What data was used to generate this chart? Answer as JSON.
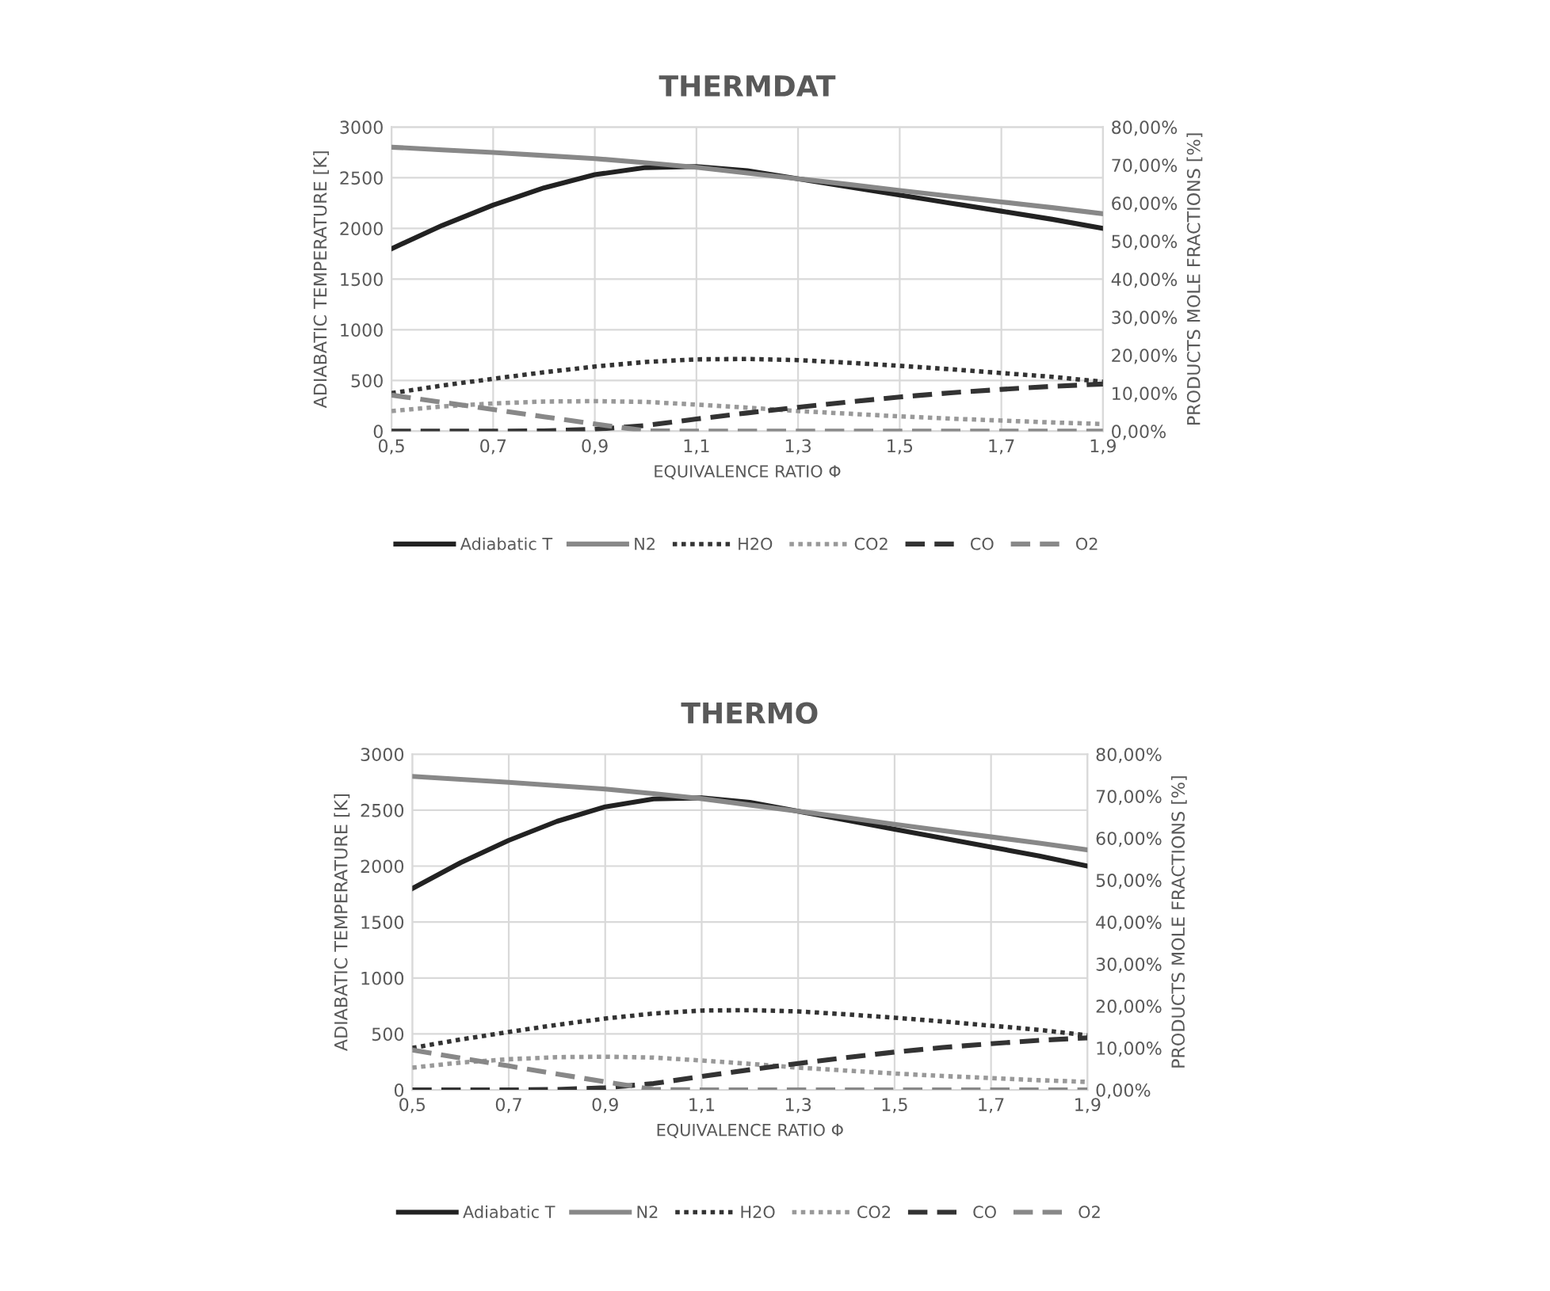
{
  "chart_data": [
    {
      "type": "line",
      "title": "THERMDAT",
      "xlabel": "EQUIVALENCE RATIO Φ",
      "ylabel": "ADIABATIC TEMPERATURE [K]",
      "y2label": "PRODUCTS MOLE FRACTIONS [%]",
      "x": [
        0.5,
        0.6,
        0.7,
        0.8,
        0.9,
        1.0,
        1.1,
        1.2,
        1.3,
        1.4,
        1.5,
        1.6,
        1.7,
        1.8,
        1.9
      ],
      "xlim": [
        0.5,
        1.9
      ],
      "xticks": [
        {
          "value": 0.5,
          "label": "0,5"
        },
        {
          "value": 0.7,
          "label": "0,7"
        },
        {
          "value": 0.9,
          "label": "0,9"
        },
        {
          "value": 1.1,
          "label": "1,1"
        },
        {
          "value": 1.3,
          "label": "1,3"
        },
        {
          "value": 1.5,
          "label": "1,5"
        },
        {
          "value": 1.7,
          "label": "1,7"
        },
        {
          "value": 1.9,
          "label": "1,9"
        }
      ],
      "ylim": [
        0,
        3000
      ],
      "yticks": [
        0,
        500,
        1000,
        1500,
        2000,
        2500,
        3000
      ],
      "y2lim": [
        0,
        80
      ],
      "y2ticks": [
        {
          "value": 0,
          "label": "0,00%"
        },
        {
          "value": 10,
          "label": "10,00%"
        },
        {
          "value": 20,
          "label": "20,00%"
        },
        {
          "value": 30,
          "label": "30,00%"
        },
        {
          "value": 40,
          "label": "40,00%"
        },
        {
          "value": 50,
          "label": "50,00%"
        },
        {
          "value": 60,
          "label": "60,00%"
        },
        {
          "value": 70,
          "label": "70,00%"
        },
        {
          "value": 80,
          "label": "80,00%"
        }
      ],
      "grid": true,
      "legend": "bottom",
      "series": [
        {
          "name": "Adiabatic T",
          "color": "#222222",
          "line_style": "solid",
          "values": [
            1800,
            2030,
            2230,
            2400,
            2530,
            2600,
            2610,
            2570,
            2490,
            2410,
            2330,
            2250,
            2170,
            2090,
            2000
          ]
        },
        {
          "name": "N2",
          "color": "#888888",
          "line_style": "solid",
          "axis": "y2",
          "values": [
            74.7,
            74.0,
            73.3,
            72.5,
            71.7,
            70.6,
            69.4,
            67.9,
            66.4,
            64.9,
            63.3,
            61.8,
            60.3,
            58.8,
            57.2
          ]
        },
        {
          "name": "H2O",
          "color": "#333333",
          "line_style": "dotted",
          "axis": "y2",
          "values": [
            10.0,
            12.0,
            13.8,
            15.5,
            17.0,
            18.2,
            18.9,
            19.0,
            18.7,
            18.0,
            17.2,
            16.3,
            15.3,
            14.3,
            13.0
          ]
        },
        {
          "name": "CO2",
          "color": "#999999",
          "line_style": "dotted",
          "axis": "y2",
          "values": [
            5.3,
            6.5,
            7.3,
            7.8,
            7.9,
            7.7,
            7.0,
            6.2,
            5.3,
            4.6,
            3.9,
            3.3,
            2.8,
            2.3,
            1.9
          ]
        },
        {
          "name": "CO",
          "color": "#333333",
          "line_style": "dashed",
          "axis": "y2",
          "values": [
            0,
            0,
            0,
            0.1,
            0.5,
            1.5,
            3.2,
            4.8,
            6.3,
            7.7,
            9.0,
            10.1,
            11.0,
            11.8,
            12.4
          ]
        },
        {
          "name": "O2",
          "color": "#888888",
          "line_style": "dashed",
          "axis": "y2",
          "values": [
            9.5,
            7.6,
            5.7,
            3.8,
            1.9,
            0.1,
            0,
            0,
            0,
            0,
            0,
            0,
            0,
            0,
            0
          ]
        }
      ]
    },
    {
      "type": "line",
      "title": "THERMO",
      "xlabel": "EQUIVALENCE RATIO Φ",
      "ylabel": "ADIABATIC TEMPERATURE [K]",
      "y2label": "PRODUCTS MOLE FRACTIONS [%]",
      "x": [
        0.5,
        0.6,
        0.7,
        0.8,
        0.9,
        1.0,
        1.1,
        1.2,
        1.3,
        1.4,
        1.5,
        1.6,
        1.7,
        1.8,
        1.9
      ],
      "xlim": [
        0.5,
        1.9
      ],
      "xticks": [
        {
          "value": 0.5,
          "label": "0,5"
        },
        {
          "value": 0.7,
          "label": "0,7"
        },
        {
          "value": 0.9,
          "label": "0,9"
        },
        {
          "value": 1.1,
          "label": "1,1"
        },
        {
          "value": 1.3,
          "label": "1,3"
        },
        {
          "value": 1.5,
          "label": "1,5"
        },
        {
          "value": 1.7,
          "label": "1,7"
        },
        {
          "value": 1.9,
          "label": "1,9"
        }
      ],
      "ylim": [
        0,
        3000
      ],
      "yticks": [
        0,
        500,
        1000,
        1500,
        2000,
        2500,
        3000
      ],
      "y2lim": [
        0,
        80
      ],
      "y2ticks": [
        {
          "value": 0,
          "label": "0,00%"
        },
        {
          "value": 10,
          "label": "10,00%"
        },
        {
          "value": 20,
          "label": "20,00%"
        },
        {
          "value": 30,
          "label": "30,00%"
        },
        {
          "value": 40,
          "label": "40,00%"
        },
        {
          "value": 50,
          "label": "50,00%"
        },
        {
          "value": 60,
          "label": "60,00%"
        },
        {
          "value": 70,
          "label": "70,00%"
        },
        {
          "value": 80,
          "label": "80,00%"
        }
      ],
      "grid": true,
      "legend": "bottom",
      "series": [
        {
          "name": "Adiabatic T",
          "color": "#222222",
          "line_style": "solid",
          "values": [
            1800,
            2030,
            2230,
            2400,
            2530,
            2600,
            2610,
            2570,
            2490,
            2410,
            2330,
            2250,
            2170,
            2090,
            2000
          ]
        },
        {
          "name": "N2",
          "color": "#888888",
          "line_style": "solid",
          "axis": "y2",
          "values": [
            74.7,
            74.0,
            73.3,
            72.5,
            71.7,
            70.6,
            69.4,
            67.9,
            66.4,
            64.9,
            63.3,
            61.8,
            60.3,
            58.8,
            57.2
          ]
        },
        {
          "name": "H2O",
          "color": "#333333",
          "line_style": "dotted",
          "axis": "y2",
          "values": [
            10.0,
            12.0,
            13.8,
            15.5,
            17.0,
            18.2,
            18.9,
            19.0,
            18.7,
            18.0,
            17.2,
            16.3,
            15.3,
            14.3,
            13.0
          ]
        },
        {
          "name": "CO2",
          "color": "#999999",
          "line_style": "dotted",
          "axis": "y2",
          "values": [
            5.3,
            6.5,
            7.3,
            7.8,
            7.9,
            7.7,
            7.0,
            6.2,
            5.3,
            4.6,
            3.9,
            3.3,
            2.8,
            2.3,
            1.9
          ]
        },
        {
          "name": "CO",
          "color": "#333333",
          "line_style": "dashed",
          "axis": "y2",
          "values": [
            0,
            0,
            0,
            0.1,
            0.5,
            1.5,
            3.2,
            4.8,
            6.3,
            7.7,
            9.0,
            10.1,
            11.0,
            11.8,
            12.4
          ]
        },
        {
          "name": "O2",
          "color": "#888888",
          "line_style": "dashed",
          "axis": "y2",
          "values": [
            9.5,
            7.6,
            5.7,
            3.8,
            1.9,
            0.1,
            0,
            0,
            0,
            0,
            0,
            0,
            0,
            0,
            0
          ]
        }
      ]
    }
  ]
}
